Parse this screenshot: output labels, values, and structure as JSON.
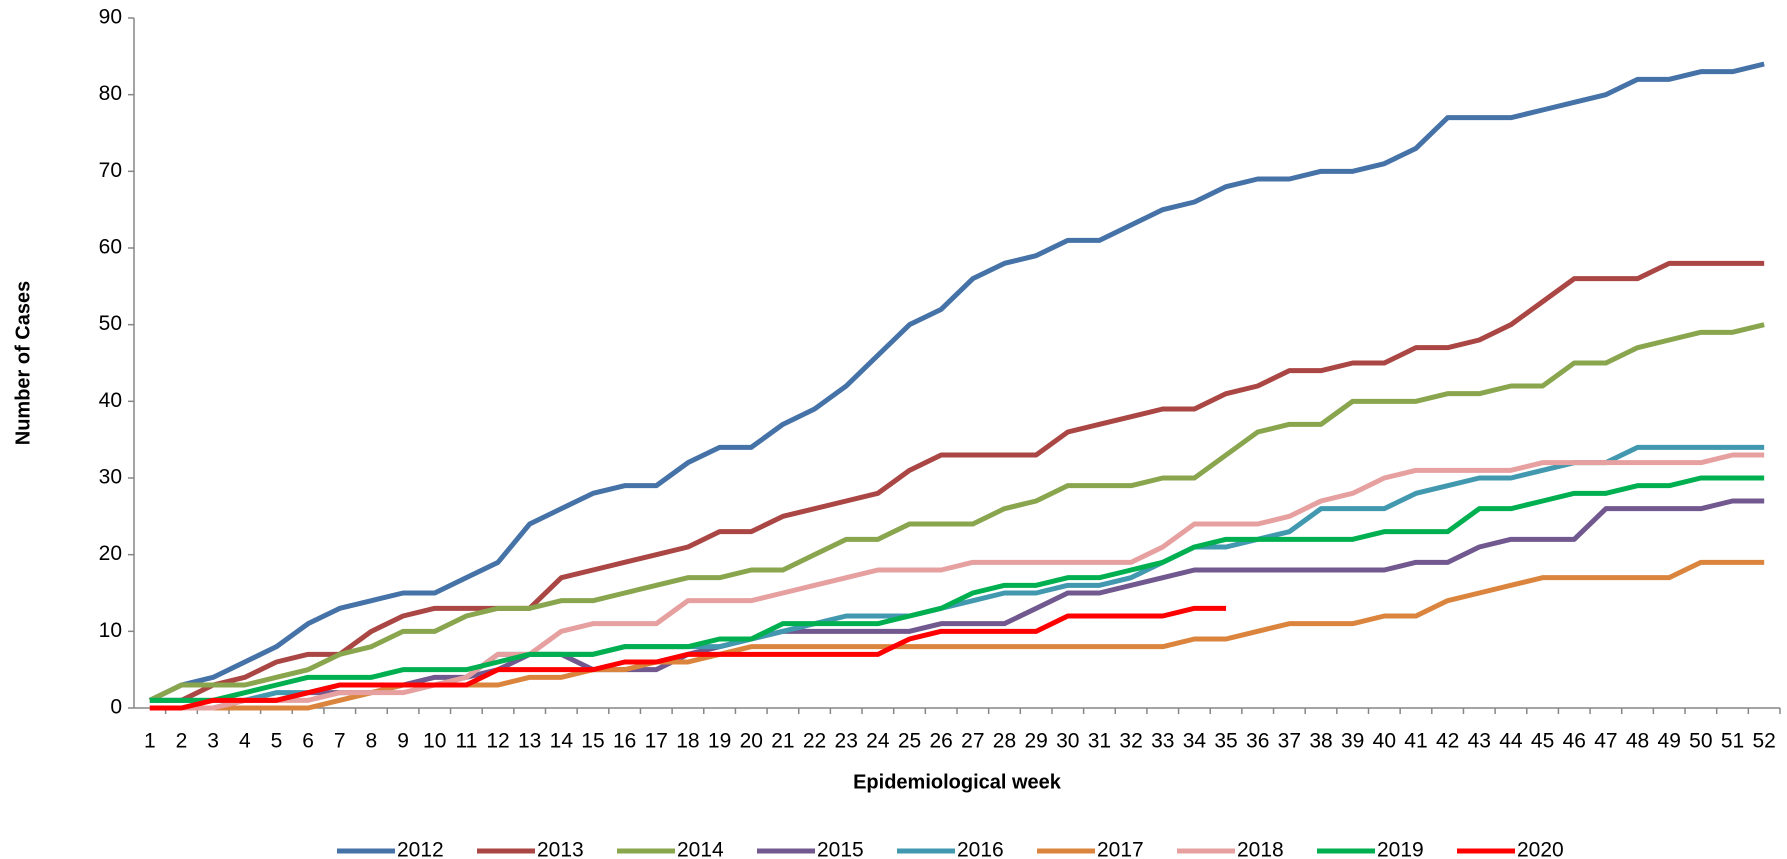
{
  "chart_data": {
    "type": "line",
    "y_label": "Number of Cases",
    "x_label": "Epidemiological week",
    "categories": [
      "1",
      "2",
      "3",
      "4",
      "5",
      "6",
      "7",
      "8",
      "9",
      "10",
      "11",
      "12",
      "13",
      "14",
      "15",
      "16",
      "17",
      "18",
      "19",
      "20",
      "21",
      "22",
      "23",
      "24",
      "25",
      "26",
      "27",
      "28",
      "29",
      "30",
      "31",
      "32",
      "33",
      "34",
      "35",
      "36",
      "37",
      "38",
      "39",
      "40",
      "41",
      "42",
      "43",
      "44",
      "45",
      "46",
      "47",
      "48",
      "49",
      "50",
      "51",
      "52"
    ],
    "ylim": [
      0,
      90
    ],
    "yticks": [
      0,
      10,
      20,
      30,
      40,
      50,
      60,
      70,
      80,
      90
    ],
    "grid": false,
    "legend": "bottom",
    "series": [
      {
        "name": "2012",
        "color": "#4572a7",
        "values": [
          1,
          3,
          4,
          6,
          8,
          11,
          13,
          14,
          15,
          15,
          17,
          19,
          24,
          26,
          28,
          29,
          29,
          32,
          34,
          34,
          37,
          39,
          42,
          46,
          50,
          52,
          56,
          58,
          59,
          61,
          61,
          63,
          65,
          66,
          68,
          69,
          69,
          70,
          70,
          71,
          73,
          77,
          77,
          77,
          78,
          79,
          80,
          82,
          82,
          83,
          83,
          84
        ]
      },
      {
        "name": "2013",
        "color": "#aa4643",
        "values": [
          1,
          1,
          3,
          4,
          6,
          7,
          7,
          10,
          12,
          13,
          13,
          13,
          13,
          17,
          18,
          19,
          20,
          21,
          23,
          23,
          25,
          26,
          27,
          28,
          31,
          33,
          33,
          33,
          33,
          36,
          37,
          38,
          39,
          39,
          41,
          42,
          44,
          44,
          45,
          45,
          47,
          47,
          48,
          50,
          53,
          56,
          56,
          56,
          58,
          58,
          58,
          58
        ]
      },
      {
        "name": "2014",
        "color": "#89a54e",
        "values": [
          1,
          3,
          3,
          3,
          4,
          5,
          7,
          8,
          10,
          10,
          12,
          13,
          13,
          14,
          14,
          15,
          16,
          17,
          17,
          18,
          18,
          20,
          22,
          22,
          24,
          24,
          24,
          26,
          27,
          29,
          29,
          29,
          30,
          30,
          33,
          36,
          37,
          37,
          40,
          40,
          40,
          41,
          41,
          42,
          42,
          45,
          45,
          47,
          48,
          49,
          49,
          50
        ]
      },
      {
        "name": "2015",
        "color": "#71588f",
        "values": [
          0,
          0,
          0,
          1,
          1,
          2,
          2,
          2,
          3,
          4,
          4,
          5,
          7,
          7,
          5,
          5,
          5,
          7,
          8,
          9,
          10,
          10,
          10,
          10,
          10,
          11,
          11,
          11,
          13,
          15,
          15,
          16,
          17,
          18,
          18,
          18,
          18,
          18,
          18,
          18,
          19,
          19,
          21,
          22,
          22,
          22,
          26,
          26,
          26,
          26,
          27,
          27
        ]
      },
      {
        "name": "2016",
        "color": "#4198af",
        "values": [
          1,
          1,
          1,
          1,
          2,
          2,
          3,
          3,
          3,
          3,
          4,
          7,
          7,
          7,
          7,
          8,
          8,
          8,
          8,
          9,
          10,
          11,
          12,
          12,
          12,
          13,
          14,
          15,
          15,
          16,
          16,
          17,
          19,
          21,
          21,
          22,
          23,
          26,
          26,
          26,
          28,
          29,
          30,
          30,
          31,
          32,
          32,
          34,
          34,
          34,
          34,
          34
        ]
      },
      {
        "name": "2017",
        "color": "#db843d",
        "values": [
          0,
          0,
          0,
          0,
          0,
          0,
          1,
          2,
          3,
          3,
          3,
          3,
          4,
          4,
          5,
          5,
          6,
          6,
          7,
          8,
          8,
          8,
          8,
          8,
          8,
          8,
          8,
          8,
          8,
          8,
          8,
          8,
          8,
          9,
          9,
          10,
          11,
          11,
          11,
          12,
          12,
          14,
          15,
          16,
          17,
          17,
          17,
          17,
          17,
          19,
          19,
          19
        ]
      },
      {
        "name": "2018",
        "color": "#e6a0a0",
        "values": [
          0,
          0,
          0,
          1,
          1,
          1,
          2,
          2,
          2,
          3,
          4,
          7,
          7,
          10,
          11,
          11,
          11,
          14,
          14,
          14,
          15,
          16,
          17,
          18,
          18,
          18,
          19,
          19,
          19,
          19,
          19,
          19,
          21,
          24,
          24,
          24,
          25,
          27,
          28,
          30,
          31,
          31,
          31,
          31,
          32,
          32,
          32,
          32,
          32,
          32,
          33,
          33
        ]
      },
      {
        "name": "2019",
        "color": "#00b050",
        "values": [
          1,
          1,
          1,
          2,
          3,
          4,
          4,
          4,
          5,
          5,
          5,
          6,
          7,
          7,
          7,
          8,
          8,
          8,
          9,
          9,
          11,
          11,
          11,
          11,
          12,
          13,
          15,
          16,
          16,
          17,
          17,
          18,
          19,
          21,
          22,
          22,
          22,
          22,
          22,
          23,
          23,
          23,
          26,
          26,
          27,
          28,
          28,
          29,
          29,
          30,
          30,
          30
        ]
      },
      {
        "name": "2020",
        "color": "#ff0000",
        "values": [
          0,
          0,
          1,
          1,
          1,
          2,
          3,
          3,
          3,
          3,
          3,
          5,
          5,
          5,
          5,
          6,
          6,
          7,
          7,
          7,
          7,
          7,
          7,
          7,
          9,
          10,
          10,
          10,
          10,
          12,
          12,
          12,
          12,
          13,
          13,
          null,
          null,
          null,
          null,
          null,
          null,
          null,
          null,
          null,
          null,
          null,
          null,
          null,
          null,
          null,
          null,
          null
        ]
      }
    ]
  }
}
